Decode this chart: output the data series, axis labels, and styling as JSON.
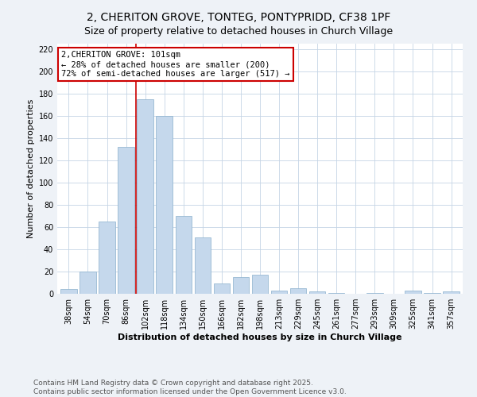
{
  "title": "2, CHERITON GROVE, TONTEG, PONTYPRIDD, CF38 1PF",
  "subtitle": "Size of property relative to detached houses in Church Village",
  "xlabel": "Distribution of detached houses by size in Church Village",
  "ylabel": "Number of detached properties",
  "categories": [
    "38sqm",
    "54sqm",
    "70sqm",
    "86sqm",
    "102sqm",
    "118sqm",
    "134sqm",
    "150sqm",
    "166sqm",
    "182sqm",
    "198sqm",
    "213sqm",
    "229sqm",
    "245sqm",
    "261sqm",
    "277sqm",
    "293sqm",
    "309sqm",
    "325sqm",
    "341sqm",
    "357sqm"
  ],
  "values": [
    4,
    20,
    65,
    132,
    175,
    160,
    70,
    51,
    9,
    15,
    17,
    3,
    5,
    2,
    1,
    0,
    1,
    0,
    3,
    1,
    2
  ],
  "bar_color": "#c5d8ec",
  "bar_edge_color": "#8ab0cc",
  "vline_x": 3.5,
  "marker_label": "2,CHERITON GROVE: 101sqm",
  "annotation_line1": "← 28% of detached houses are smaller (200)",
  "annotation_line2": "72% of semi-detached houses are larger (517) →",
  "vline_color": "#cc0000",
  "annotation_box_edge": "#cc0000",
  "footer_line1": "Contains HM Land Registry data © Crown copyright and database right 2025.",
  "footer_line2": "Contains public sector information licensed under the Open Government Licence v3.0.",
  "ylim": [
    0,
    225
  ],
  "yticks": [
    0,
    20,
    40,
    60,
    80,
    100,
    120,
    140,
    160,
    180,
    200,
    220
  ],
  "title_fontsize": 10,
  "subtitle_fontsize": 9,
  "axis_label_fontsize": 8,
  "tick_fontsize": 7,
  "annotation_fontsize": 7.5,
  "footer_fontsize": 6.5,
  "bg_color": "#eef2f7",
  "plot_bg_color": "#ffffff",
  "grid_color": "#c5d5e5"
}
